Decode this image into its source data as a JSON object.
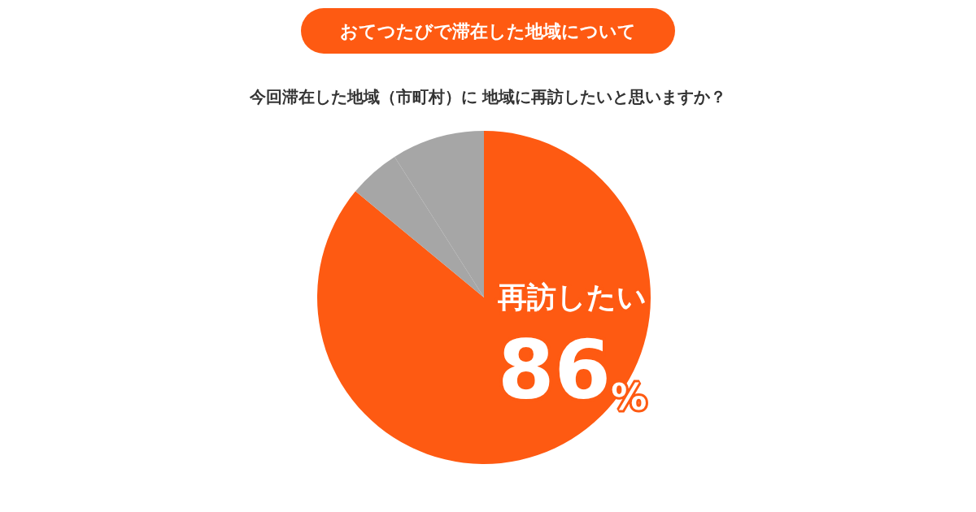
{
  "chart_data": {
    "type": "pie",
    "title": "おてつたびで滞在した地域について",
    "subtitle": "今回滞在した地域（市町村）に 地域に再訪したいと思いますか？",
    "categories": [
      "再訪したい",
      null,
      null
    ],
    "values": [
      86,
      5,
      9
    ],
    "colors": [
      "#fe5a12",
      "#a6a6a6",
      "#a6a6a6"
    ],
    "value_labels": [
      "86%",
      null,
      null
    ],
    "legend": false
  }
}
